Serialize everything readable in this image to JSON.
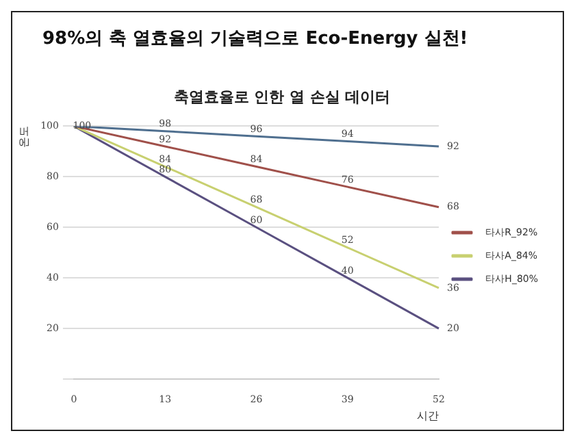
{
  "chart_data": {
    "type": "line",
    "title": "98%의 축 열효율의 기술력으로 Eco-Energy 실천!",
    "subtitle": "축열효율로 인한 열 손실 데이터",
    "xlabel": "시간",
    "ylabel": "온도",
    "categories": [
      "0",
      "13",
      "26",
      "39",
      "52"
    ],
    "series": [
      {
        "color": "#4f6f8f",
        "values": [
          100,
          98,
          96,
          94,
          92
        ],
        "value_labels": [
          "100",
          "98",
          "96",
          "94",
          "92"
        ]
      },
      {
        "name": "타사R_92%",
        "color": "#a0504a",
        "values": [
          100,
          92,
          84,
          76,
          68
        ],
        "value_labels": [
          null,
          "92",
          "84",
          "76",
          "68"
        ]
      },
      {
        "name": "타사A_84%",
        "color": "#c8d070",
        "values": [
          100,
          84,
          68,
          52,
          36
        ],
        "value_labels": [
          null,
          "84",
          "68",
          "52",
          "36"
        ]
      },
      {
        "name": "타사H_80%",
        "color": "#5a5080",
        "values": [
          100,
          80,
          60,
          40,
          20
        ],
        "value_labels": [
          null,
          "80",
          "60",
          "40",
          "20"
        ]
      }
    ],
    "ylim": [
      0,
      100
    ],
    "yticks": [
      {
        "value": 0,
        "label": null
      },
      20,
      40,
      60,
      80,
      100
    ],
    "grid": "y",
    "legend": "right",
    "marker": "none",
    "line_style": "solid"
  }
}
